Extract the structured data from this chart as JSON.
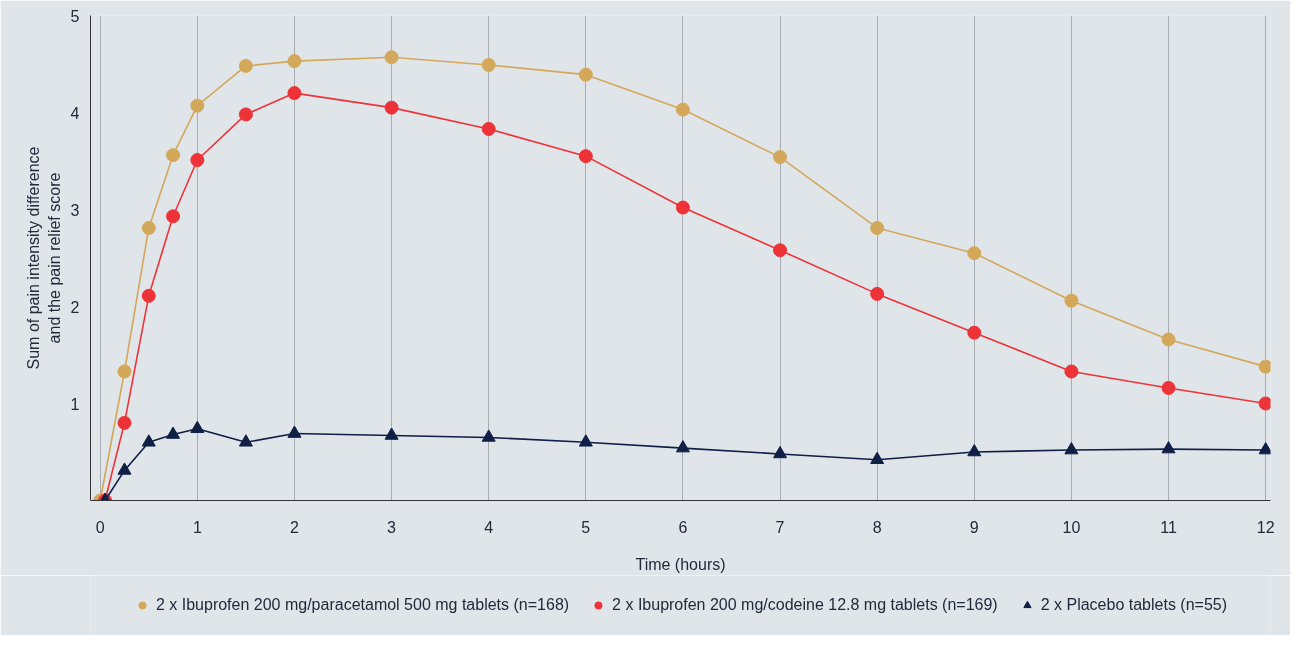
{
  "chart_data": {
    "type": "line",
    "xlabel": "Time (hours)",
    "ylabel": "Sum of pain intensity difference\nand the pain relief score",
    "xlim": [
      -0.1,
      12.05
    ],
    "ylim": [
      0,
      5
    ],
    "xticks": [
      0,
      1,
      2,
      3,
      4,
      5,
      6,
      7,
      8,
      9,
      10,
      11,
      12
    ],
    "yticks": [
      1,
      2,
      3,
      4,
      5
    ],
    "grid": "x",
    "legend": "bottom",
    "marker": "circle",
    "line_style": "solid",
    "series": [
      {
        "name": "2 x Ibuprofen 200 mg/paracetamol 500 mg tablets (n=168)",
        "color": "#d4a85a",
        "marker": "circle",
        "x": [
          0,
          0.25,
          0.5,
          0.75,
          1,
          1.5,
          2,
          3,
          4,
          5,
          6,
          7,
          8,
          9,
          10,
          11,
          12
        ],
        "values": [
          0,
          1.33,
          2.81,
          3.56,
          4.07,
          4.48,
          4.53,
          4.57,
          4.49,
          4.39,
          4.03,
          3.54,
          2.81,
          2.55,
          2.06,
          1.66,
          1.38
        ]
      },
      {
        "name": "2 x Ibuprofen 200 mg/codeine 12.8 mg tablets (n=169)",
        "color": "#ee3338",
        "marker": "circle",
        "x": [
          0.05,
          0.25,
          0.5,
          0.75,
          1,
          1.5,
          2,
          3,
          4,
          5,
          6,
          7,
          8,
          9,
          10,
          11,
          12
        ],
        "values": [
          0,
          0.8,
          2.11,
          2.93,
          3.51,
          3.98,
          4.2,
          4.05,
          3.83,
          3.55,
          3.02,
          2.58,
          2.13,
          1.73,
          1.33,
          1.16,
          1.0
        ]
      },
      {
        "name": "2 x Placebo tablets (n=55)",
        "color": "#0f1f45",
        "marker": "triangle",
        "x": [
          0.05,
          0.25,
          0.5,
          0.75,
          1,
          1.5,
          2,
          3,
          4,
          5,
          6,
          7,
          8,
          9,
          10,
          11,
          12
        ],
        "values": [
          0,
          0.31,
          0.6,
          0.68,
          0.74,
          0.6,
          0.69,
          0.67,
          0.65,
          0.6,
          0.54,
          0.48,
          0.42,
          0.5,
          0.52,
          0.53,
          0.52
        ]
      }
    ]
  }
}
